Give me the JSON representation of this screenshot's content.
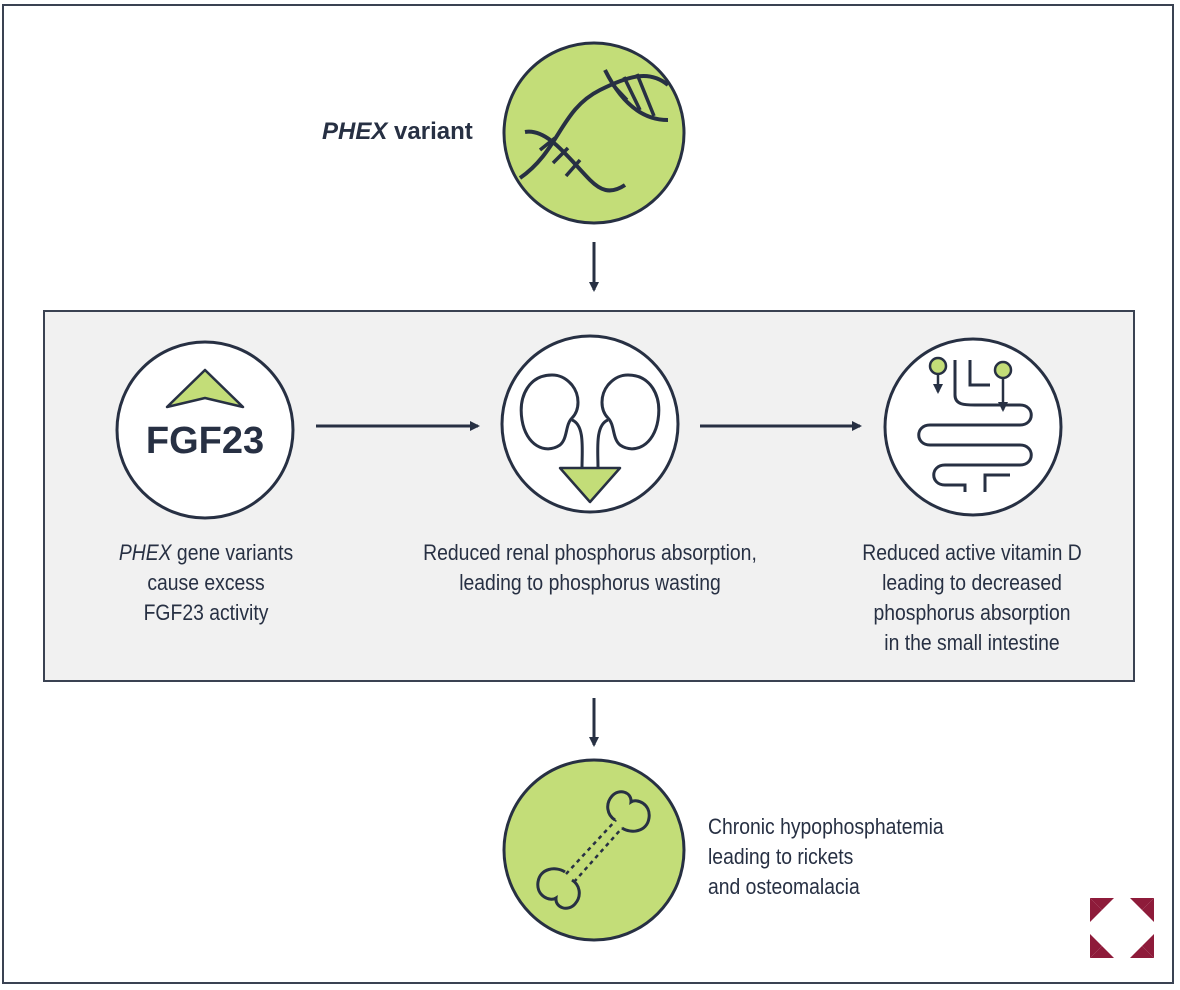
{
  "top": {
    "variant_em": "PHEX",
    "variant_rest": " variant"
  },
  "steps": [
    {
      "icon": "fgf23-up-icon",
      "badge": "FGF23",
      "line1_em": "PHEX",
      "line1_rest": " gene variants",
      "line2": "cause excess",
      "line3": "FGF23 activity"
    },
    {
      "icon": "kidney-down-icon",
      "line1": "Reduced renal phosphorus absorption,",
      "line2": "leading to phosphorus wasting"
    },
    {
      "icon": "intestine-icon",
      "line1": "Reduced active vitamin D",
      "line2": "leading to decreased",
      "line3": "phosphorus absorption",
      "line4": "in the small intestine"
    }
  ],
  "outcome": {
    "icon": "bone-icon",
    "line1": "Chronic hypophosphatemia",
    "line2": "leading to rickets",
    "line3": "and osteomalacia"
  },
  "colors": {
    "green": "#c3dd78",
    "dark": "#273043",
    "panel": "#f1f1f1",
    "logo": "#8e1b3a"
  },
  "logo": {
    "icon": "expand-arrows-logo"
  }
}
